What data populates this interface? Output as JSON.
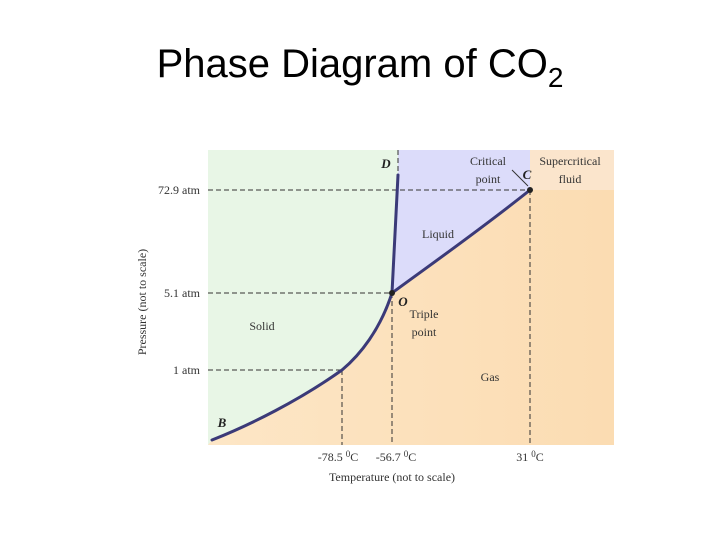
{
  "title": {
    "text": "Phase Diagram of CO",
    "subscript": "2"
  },
  "axes": {
    "y_title": "Pressure (not to scale)",
    "x_title": "Temperature (not to scale)",
    "y_labels": [
      "72.9 atm",
      "5.1 atm",
      "1 atm"
    ],
    "x_labels": [
      {
        "number": "-78.5",
        "sup": "0",
        "unit": "C"
      },
      {
        "number": "-56.7",
        "sup": "0",
        "unit": "C"
      },
      {
        "number": "31",
        "sup": "0",
        "unit": "C"
      }
    ]
  },
  "regions": {
    "solid": "Solid",
    "liquid": "Liquid",
    "gas": "Gas",
    "supercritical": [
      "Supercritical",
      "fluid"
    ]
  },
  "points": {
    "critical": [
      "Critical",
      "point"
    ],
    "critical_letter": "C",
    "triple": [
      "Triple",
      "point"
    ],
    "triple_letter": "O",
    "top_letter": "D",
    "bottom_letter": "B"
  }
}
